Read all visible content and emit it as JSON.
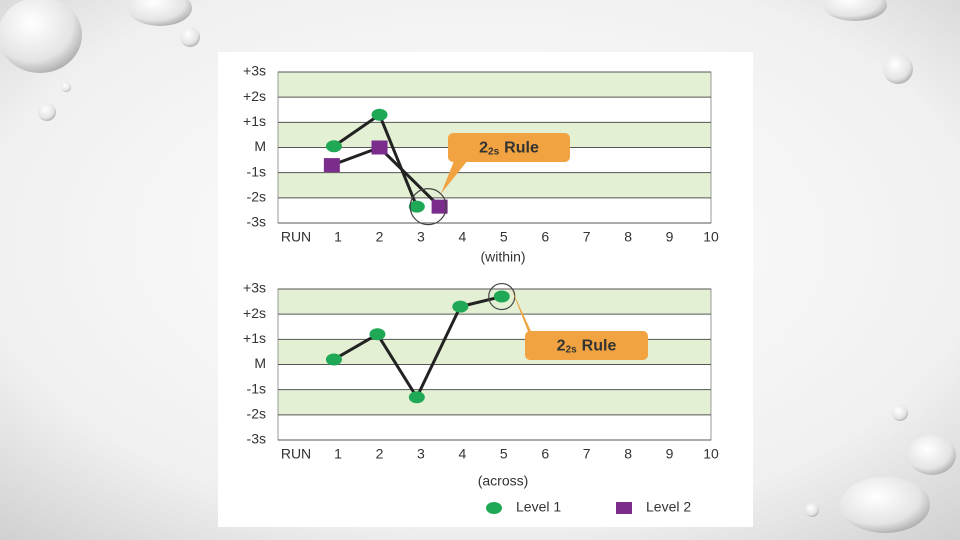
{
  "chart_data": [
    {
      "type": "line",
      "x_axis_label": "RUN",
      "x_axis_note": "(within)",
      "xlim": [
        -0.45,
        10
      ],
      "xticks": [
        1,
        2,
        3,
        4,
        5,
        6,
        7,
        8,
        9,
        10
      ],
      "ylim": [
        -3,
        3
      ],
      "yticks": [
        {
          "value": 3,
          "label": "+3s"
        },
        {
          "value": 2,
          "label": "+2s"
        },
        {
          "value": 1,
          "label": "+1s"
        },
        {
          "value": 0,
          "label": "M"
        },
        {
          "value": -1,
          "label": "-1s"
        },
        {
          "value": -2,
          "label": "-2s"
        },
        {
          "value": -3,
          "label": "-3s"
        }
      ],
      "grid": true,
      "annotation": {
        "number": "2",
        "subscript": "2s",
        "text": "Rule"
      },
      "series": [
        {
          "name": "Level 1",
          "color": "#1fa855",
          "marker": "circle",
          "x": [
            0.9,
            2,
            2.9
          ],
          "values": [
            0.05,
            1.3,
            -2.35
          ]
        },
        {
          "name": "Level 2",
          "color": "#7b2d8e",
          "marker": "square",
          "x": [
            0.85,
            2,
            3.45
          ],
          "values": [
            -0.7,
            0,
            -2.35
          ]
        }
      ]
    },
    {
      "type": "line",
      "x_axis_label": "RUN",
      "x_axis_note": "(across)",
      "xlim": [
        -0.45,
        10
      ],
      "xticks": [
        1,
        2,
        3,
        4,
        5,
        6,
        7,
        8,
        9,
        10
      ],
      "ylim": [
        -3,
        3
      ],
      "yticks": [
        {
          "value": 3,
          "label": "+3s"
        },
        {
          "value": 2,
          "label": "+2s"
        },
        {
          "value": 1,
          "label": "+1s"
        },
        {
          "value": 0,
          "label": "M"
        },
        {
          "value": -1,
          "label": "-1s"
        },
        {
          "value": -2,
          "label": "-2s"
        },
        {
          "value": -3,
          "label": "-3s"
        }
      ],
      "grid": true,
      "legend": "bottom",
      "annotation": {
        "number": "2",
        "subscript": "2s",
        "text": "Rule"
      },
      "series": [
        {
          "color": "#1fa855",
          "marker": "circle",
          "x": [
            0.9,
            1.95,
            2.9,
            3.95,
            4.95
          ],
          "values": [
            0.2,
            1.2,
            -1.3,
            2.3,
            2.7
          ]
        }
      ]
    }
  ]
}
